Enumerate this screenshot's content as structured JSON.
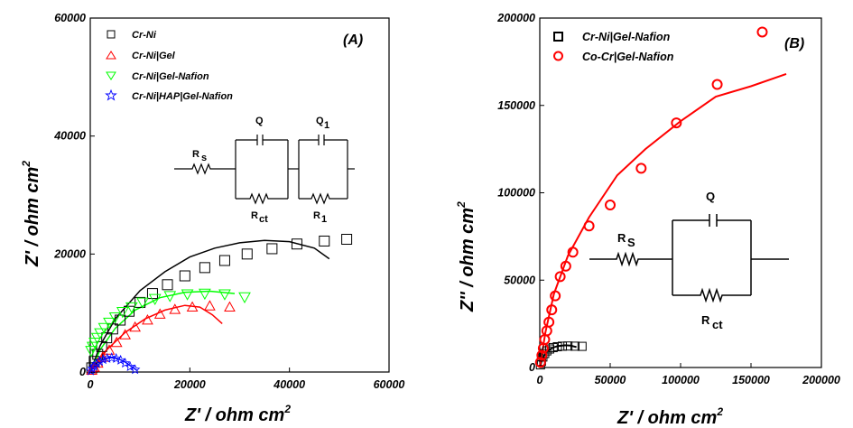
{
  "chart_data": [
    {
      "type": "scatter",
      "panel_label": "(A)",
      "xlabel": "Z'  / ohm cm",
      "xlabel_sup": "2",
      "ylabel": "Z'  / ohm cm",
      "ylabel_sup": "2",
      "xlim": [
        0,
        60000
      ],
      "ylim": [
        0,
        60000
      ],
      "xticks": [
        0,
        20000,
        40000,
        60000
      ],
      "yticks": [
        0,
        20000,
        40000,
        60000
      ],
      "legend_position": "top-left",
      "series": [
        {
          "name": "Cr-Ni",
          "marker": "square",
          "color": "#000000",
          "points": [
            [
              300,
              700
            ],
            [
              800,
              1800
            ],
            [
              1500,
              3000
            ],
            [
              2300,
              4300
            ],
            [
              3300,
              5800
            ],
            [
              4500,
              7300
            ],
            [
              6000,
              8800
            ],
            [
              7800,
              10300
            ],
            [
              10000,
              11800
            ],
            [
              12500,
              13300
            ],
            [
              15500,
              14800
            ],
            [
              19000,
              16300
            ],
            [
              23000,
              17700
            ],
            [
              27000,
              18900
            ],
            [
              31500,
              20000
            ],
            [
              36500,
              20900
            ],
            [
              41500,
              21700
            ],
            [
              47000,
              22200
            ],
            [
              51500,
              22500
            ]
          ],
          "fit": [
            [
              0,
              0
            ],
            [
              2000,
              4500
            ],
            [
              5000,
              9000
            ],
            [
              10000,
              13800
            ],
            [
              15000,
              17000
            ],
            [
              20000,
              19500
            ],
            [
              25000,
              21000
            ],
            [
              30000,
              21900
            ],
            [
              35000,
              22300
            ],
            [
              40000,
              22100
            ],
            [
              45000,
              21000
            ],
            [
              48000,
              19200
            ]
          ]
        },
        {
          "name": "Cr-Ni|Gel",
          "marker": "triangle",
          "color": "#ff0000",
          "points": [
            [
              300,
              300
            ],
            [
              800,
              800
            ],
            [
              1500,
              1500
            ],
            [
              2500,
              2500
            ],
            [
              3800,
              3700
            ],
            [
              5300,
              5000
            ],
            [
              7000,
              6300
            ],
            [
              9000,
              7600
            ],
            [
              11500,
              8800
            ],
            [
              14000,
              9800
            ],
            [
              17000,
              10600
            ],
            [
              20500,
              11000
            ],
            [
              24000,
              11200
            ],
            [
              28000,
              11000
            ]
          ],
          "fit": [
            [
              0,
              0
            ],
            [
              3000,
              3500
            ],
            [
              7000,
              6700
            ],
            [
              11000,
              9000
            ],
            [
              15000,
              10500
            ],
            [
              19000,
              11300
            ],
            [
              22000,
              11000
            ],
            [
              24500,
              9700
            ],
            [
              26500,
              8200
            ]
          ]
        },
        {
          "name": "Cr-Ni|Gel-Nafion",
          "marker": "triangle-down",
          "color": "#00ff00",
          "points": [
            [
              200,
              3600
            ],
            [
              500,
              4300
            ],
            [
              900,
              5000
            ],
            [
              1400,
              5800
            ],
            [
              2000,
              6600
            ],
            [
              2800,
              7500
            ],
            [
              3800,
              8400
            ],
            [
              5000,
              9300
            ],
            [
              6500,
              10200
            ],
            [
              8300,
              11000
            ],
            [
              10500,
              11800
            ],
            [
              13000,
              12400
            ],
            [
              16000,
              12900
            ],
            [
              19500,
              13200
            ],
            [
              23000,
              13300
            ],
            [
              27000,
              13200
            ],
            [
              31000,
              12700
            ]
          ],
          "fit": [
            [
              0,
              0
            ],
            [
              2000,
              3800
            ],
            [
              5000,
              7400
            ],
            [
              9000,
              10500
            ],
            [
              14000,
              12600
            ],
            [
              19000,
              13500
            ],
            [
              24000,
              13700
            ],
            [
              29000,
              13300
            ]
          ]
        },
        {
          "name": "Cr-Ni|HAP|Gel-Nafion",
          "marker": "star",
          "color": "#0000ff",
          "points": [
            [
              100,
              200
            ],
            [
              400,
              600
            ],
            [
              800,
              1000
            ],
            [
              1300,
              1400
            ],
            [
              1900,
              1800
            ],
            [
              2600,
              2100
            ],
            [
              3400,
              2300
            ],
            [
              4300,
              2400
            ],
            [
              5200,
              2300
            ],
            [
              6100,
              2000
            ],
            [
              7000,
              1500
            ],
            [
              8000,
              900
            ],
            [
              9000,
              400
            ]
          ],
          "fit": [
            [
              0,
              0
            ],
            [
              1000,
              1300
            ],
            [
              2500,
              2100
            ],
            [
              4000,
              2450
            ],
            [
              5500,
              2300
            ],
            [
              7000,
              1700
            ],
            [
              8500,
              800
            ],
            [
              9500,
              200
            ]
          ]
        }
      ],
      "circuit": {
        "labels": [
          "R",
          "s",
          "Q",
          "Q",
          "1",
          "R",
          "ct",
          "R",
          "1"
        ]
      }
    },
    {
      "type": "scatter",
      "panel_label": "(B)",
      "xlabel": "Z'  / ohm cm",
      "xlabel_sup": "2",
      "ylabel": "Z'' / ohm cm",
      "ylabel_sup": "2",
      "xlim": [
        0,
        200000
      ],
      "ylim": [
        0,
        200000
      ],
      "xticks": [
        0,
        50000,
        100000,
        150000,
        200000
      ],
      "yticks": [
        0,
        50000,
        100000,
        150000,
        200000
      ],
      "legend_position": "top-left",
      "series": [
        {
          "name": "Cr-Ni|Gel-Nafion",
          "marker": "square",
          "color": "#000000",
          "points": [
            [
              500,
              1500
            ],
            [
              1200,
              3500
            ],
            [
              2200,
              6000
            ],
            [
              3500,
              8000
            ],
            [
              5000,
              9500
            ],
            [
              7000,
              10600
            ],
            [
              9500,
              11400
            ],
            [
              12500,
              11900
            ],
            [
              16000,
              12200
            ],
            [
              20000,
              12300
            ],
            [
              25000,
              12200
            ],
            [
              30000,
              12100
            ]
          ],
          "fit": [
            [
              0,
              0
            ],
            [
              2000,
              5500
            ],
            [
              5000,
              9000
            ],
            [
              9000,
              11300
            ],
            [
              13000,
              12300
            ],
            [
              18000,
              12700
            ],
            [
              22000,
              12500
            ],
            [
              26000,
              11700
            ]
          ]
        },
        {
          "name": "Co-Cr|Gel-Nafion",
          "marker": "circle",
          "color": "#ff0000",
          "points": [
            [
              500,
              3000
            ],
            [
              1500,
              7000
            ],
            [
              2500,
              11000
            ],
            [
              3500,
              16000
            ],
            [
              5000,
              21000
            ],
            [
              6500,
              26000
            ],
            [
              8500,
              33000
            ],
            [
              11000,
              41000
            ],
            [
              14500,
              52000
            ],
            [
              18500,
              58000
            ],
            [
              23500,
              66000
            ],
            [
              35000,
              81000
            ],
            [
              50000,
              93000
            ],
            [
              72000,
              114000
            ],
            [
              97000,
              140000
            ],
            [
              126000,
              162000
            ],
            [
              158000,
              192000
            ]
          ],
          "fit": [
            [
              0,
              0
            ],
            [
              4000,
              20000
            ],
            [
              10000,
              42000
            ],
            [
              20000,
              64000
            ],
            [
              35000,
              86000
            ],
            [
              55000,
              110000
            ],
            [
              75000,
              125000
            ],
            [
              100000,
              141000
            ],
            [
              125000,
              155000
            ],
            [
              150000,
              161000
            ],
            [
              175000,
              168000
            ]
          ]
        }
      ],
      "circuit": {
        "labels": [
          "R",
          "S",
          "Q",
          "R",
          "ct"
        ]
      }
    }
  ]
}
